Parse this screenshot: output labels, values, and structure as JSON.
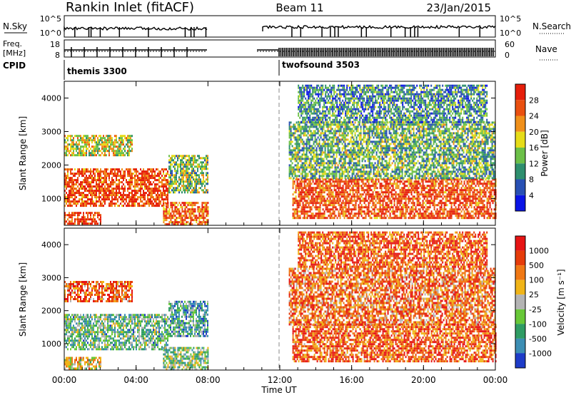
{
  "header": {
    "title": "Rankin Inlet (fitACF)",
    "beam": "Beam 11",
    "date": "23/Jan/2015"
  },
  "strips": {
    "nsky": {
      "label": "N.Sky",
      "ticks": [
        "10^5",
        "10^0"
      ],
      "right_label": "N.Search",
      "right_ticks": [
        "10^5",
        "10^0"
      ]
    },
    "freq": {
      "label_1": "Freq.",
      "label_2": "[MHz]",
      "ticks": [
        "18",
        "8"
      ],
      "right_label": "Nave",
      "right_ticks": [
        "60",
        "0"
      ]
    },
    "cpid": {
      "label": "CPID",
      "modes": [
        {
          "name": "themis 3300",
          "start": 0,
          "end": 12
        },
        {
          "name": "twofsound 3503",
          "start": 12.4,
          "end": 24
        }
      ]
    }
  },
  "chart_data": [
    {
      "type": "heatmap",
      "title": "",
      "xlabel": "Time UT",
      "ylabel": "Slant Range [km]",
      "xlim": [
        0,
        24
      ],
      "ylim": [
        200,
        4500
      ],
      "x_ticks": [
        "00:00",
        "04:00",
        "08:00",
        "12:00",
        "16:00",
        "20:00",
        "00:00"
      ],
      "y_ticks": [
        1000,
        2000,
        3000,
        4000
      ],
      "colorbar": {
        "label": "Power [dB]",
        "ticks": [
          "28",
          "24",
          "20",
          "16",
          "12",
          "8",
          "4"
        ],
        "range": [
          0,
          30
        ],
        "colors": [
          "#0a14e6",
          "#2850b4",
          "#2e8f6e",
          "#6cc048",
          "#e6dc18",
          "#f0901a",
          "#ea5010",
          "#e61e0a"
        ]
      },
      "field": "power",
      "data_gap_hours": [
        8.0,
        10.5
      ],
      "echo_regions": [
        {
          "t0": 0.0,
          "t1": 5.8,
          "r0": 800,
          "r1": 1900,
          "level": 0.85
        },
        {
          "t0": 0.0,
          "t1": 2.0,
          "r0": 220,
          "r1": 600,
          "level": 0.9
        },
        {
          "t0": 0.0,
          "t1": 3.8,
          "r0": 2300,
          "r1": 2900,
          "level": 0.55
        },
        {
          "t0": 5.5,
          "t1": 8.0,
          "r0": 250,
          "r1": 900,
          "level": 0.8
        },
        {
          "t0": 5.8,
          "t1": 8.0,
          "r0": 1200,
          "r1": 2300,
          "level": 0.45
        },
        {
          "t0": 12.7,
          "t1": 24.0,
          "r0": 450,
          "r1": 1600,
          "level": 0.85
        },
        {
          "t0": 12.5,
          "t1": 24.0,
          "r0": 1600,
          "r1": 3300,
          "level": 0.4
        },
        {
          "t0": 13.0,
          "t1": 23.5,
          "r0": 3300,
          "r1": 4400,
          "level": 0.3
        }
      ]
    },
    {
      "type": "heatmap",
      "title": "",
      "xlabel": "Time UT",
      "ylabel": "Slant Range [km]",
      "xlim": [
        0,
        24
      ],
      "ylim": [
        200,
        4500
      ],
      "x_ticks": [
        "00:00",
        "04:00",
        "08:00",
        "12:00",
        "16:00",
        "20:00",
        "00:00"
      ],
      "y_ticks": [
        1000,
        2000,
        3000,
        4000
      ],
      "colorbar": {
        "label": "Velocity [m s⁻¹]",
        "ticks": [
          "1000",
          "500",
          "100",
          "25",
          "-25",
          "-100",
          "-500",
          "-1000"
        ],
        "range": [
          -1000,
          1000
        ],
        "colors": [
          "#1e3cc8",
          "#3c8eb4",
          "#2f9c64",
          "#68c838",
          "#b4b4b4",
          "#f0b418",
          "#f07814",
          "#e63c0a",
          "#e61414"
        ]
      },
      "field": "velocity",
      "data_gap_hours": [
        8.0,
        10.5
      ],
      "echo_regions": [
        {
          "t0": 0.0,
          "t1": 5.8,
          "r0": 800,
          "r1": 1900,
          "level": 0.35
        },
        {
          "t0": 0.0,
          "t1": 2.0,
          "r0": 220,
          "r1": 600,
          "level": 0.55
        },
        {
          "t0": 0.0,
          "t1": 3.8,
          "r0": 2300,
          "r1": 2900,
          "level": 0.75
        },
        {
          "t0": 5.5,
          "t1": 8.0,
          "r0": 250,
          "r1": 900,
          "level": 0.4
        },
        {
          "t0": 5.8,
          "t1": 8.0,
          "r0": 1200,
          "r1": 2300,
          "level": 0.3
        },
        {
          "t0": 12.7,
          "t1": 24.0,
          "r0": 450,
          "r1": 1600,
          "level": 0.8
        },
        {
          "t0": 12.5,
          "t1": 24.0,
          "r0": 1600,
          "r1": 3300,
          "level": 0.75
        },
        {
          "t0": 13.0,
          "t1": 23.5,
          "r0": 3300,
          "r1": 4400,
          "level": 0.8
        }
      ]
    }
  ]
}
